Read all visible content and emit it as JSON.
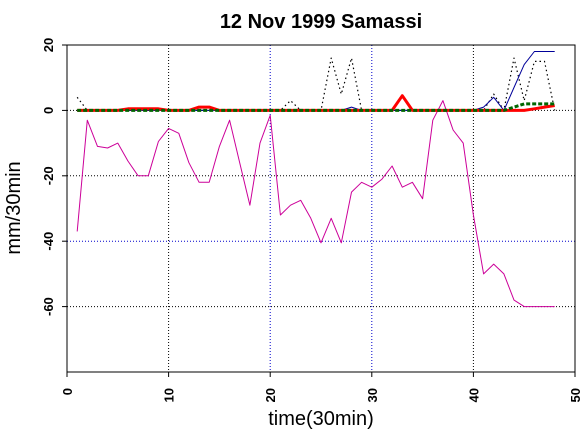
{
  "chart_data": {
    "type": "line",
    "title": "12 Nov 1999  Samassi",
    "xlabel": "time(30min)",
    "ylabel": "mm/30min",
    "xlim": [
      0,
      50
    ],
    "ylim": [
      -80,
      20
    ],
    "x_ticks": [
      0,
      10,
      20,
      30,
      40,
      50
    ],
    "x_tick_labels": [
      "0",
      "10",
      "20",
      "30",
      "40",
      "50"
    ],
    "y_ticks": [
      20,
      0,
      -20,
      -40,
      -60
    ],
    "y_tick_labels": [
      "20",
      "0",
      "-20",
      "-40",
      "-60"
    ],
    "grid": true,
    "grid_styles": {
      "x": [
        "black",
        "blue",
        "blue",
        "black"
      ],
      "y": [
        "black",
        "black",
        "blue",
        "black"
      ]
    },
    "series": [
      {
        "style": "thin-solid",
        "color": "#cc0099",
        "x": [
          1,
          2,
          3,
          4,
          5,
          6,
          7,
          8,
          9,
          10,
          11,
          12,
          13,
          14,
          15,
          16,
          17,
          18,
          19,
          20,
          21,
          22,
          23,
          24,
          25,
          26,
          27,
          28,
          29,
          30,
          31,
          32,
          33,
          34,
          35,
          36,
          37,
          38,
          39,
          40,
          41,
          42,
          43,
          44,
          45,
          46,
          47,
          48
        ],
        "values": [
          -37,
          -3,
          -11,
          -11.5,
          -10,
          -15.5,
          -20,
          -20,
          -9.5,
          -5.5,
          -7,
          -16,
          -22,
          -22,
          -11,
          -3,
          -16,
          -29,
          -10,
          -1.5,
          -32,
          -29,
          -27.5,
          -33,
          -40.5,
          -33,
          -40.5,
          -25,
          -22,
          -23.5,
          -21,
          -17,
          -23.5,
          -22,
          -27,
          -3,
          3,
          -6,
          -10,
          -32,
          -50,
          -47,
          -50,
          -58,
          -60,
          -60,
          -60,
          -60
        ]
      },
      {
        "style": "dotted",
        "color": "#000000",
        "x": [
          1,
          2,
          3,
          4,
          5,
          6,
          7,
          8,
          9,
          10,
          11,
          12,
          13,
          14,
          15,
          16,
          17,
          18,
          19,
          20,
          21,
          22,
          23,
          24,
          25,
          26,
          27,
          28,
          29,
          30,
          31,
          32,
          33,
          34,
          35,
          36,
          37,
          38,
          39,
          40,
          41,
          42,
          43,
          44,
          45,
          46,
          47,
          48
        ],
        "values": [
          4,
          0,
          0,
          0,
          0,
          0,
          0,
          0,
          0,
          0,
          0,
          0,
          0,
          0,
          0,
          0,
          0,
          0,
          0,
          0,
          0,
          3,
          0,
          0,
          0,
          16,
          5,
          16,
          0,
          0,
          0,
          0,
          0,
          0,
          0,
          0,
          0,
          0,
          0,
          0,
          0,
          5,
          0,
          16,
          3,
          15,
          15,
          0
        ]
      },
      {
        "style": "thin-solid",
        "color": "#000099",
        "x": [
          1,
          2,
          3,
          4,
          5,
          6,
          7,
          8,
          9,
          10,
          11,
          12,
          13,
          14,
          15,
          16,
          17,
          18,
          19,
          20,
          21,
          22,
          23,
          24,
          25,
          26,
          27,
          28,
          29,
          30,
          31,
          32,
          33,
          34,
          35,
          36,
          37,
          38,
          39,
          40,
          41,
          42,
          43,
          44,
          45,
          46,
          47,
          48
        ],
        "values": [
          0,
          0,
          0,
          0,
          0,
          0,
          0,
          0,
          0,
          0,
          0,
          0,
          0,
          0,
          0,
          0,
          0,
          0,
          0,
          0,
          0,
          0,
          0,
          0,
          0,
          0,
          0,
          1,
          0,
          0,
          0,
          0,
          0,
          0,
          0,
          0,
          0,
          0,
          0,
          0,
          1,
          4,
          0,
          7,
          14,
          18,
          18,
          18
        ]
      },
      {
        "style": "thick-solid",
        "color": "#ff0000",
        "x": [
          1,
          2,
          3,
          4,
          5,
          6,
          7,
          8,
          9,
          10,
          11,
          12,
          13,
          14,
          15,
          16,
          17,
          18,
          19,
          20,
          21,
          22,
          23,
          24,
          25,
          26,
          27,
          28,
          29,
          30,
          31,
          32,
          33,
          34,
          35,
          36,
          37,
          38,
          39,
          40,
          41,
          42,
          43,
          44,
          45,
          46,
          47,
          48
        ],
        "values": [
          0,
          0,
          0,
          0,
          0,
          0.5,
          0.5,
          0.5,
          0.5,
          0,
          0,
          0,
          1,
          1,
          0,
          0,
          0,
          0,
          0,
          0,
          0,
          0,
          0,
          0,
          0,
          0,
          0,
          0,
          0,
          0,
          0,
          0,
          4.5,
          0,
          0,
          0,
          0,
          0,
          0,
          0,
          0,
          0,
          0,
          0,
          0,
          0.5,
          1,
          1.5
        ]
      },
      {
        "style": "thick-dashed",
        "color": "#006600",
        "x": [
          1,
          2,
          3,
          4,
          5,
          6,
          7,
          8,
          9,
          10,
          11,
          12,
          13,
          14,
          15,
          16,
          17,
          18,
          19,
          20,
          21,
          22,
          23,
          24,
          25,
          26,
          27,
          28,
          29,
          30,
          31,
          32,
          33,
          34,
          35,
          36,
          37,
          38,
          39,
          40,
          41,
          42,
          43,
          44,
          45,
          46,
          47,
          48
        ],
        "values": [
          0,
          0,
          0,
          0,
          0,
          0,
          0,
          0,
          0,
          0,
          0,
          0,
          0,
          0,
          0,
          0,
          0,
          0,
          0,
          0,
          0,
          0,
          0,
          0,
          0,
          0,
          0,
          0,
          0,
          0,
          0,
          0,
          0,
          0,
          0,
          0,
          0,
          0,
          0,
          0,
          0,
          0,
          0,
          1,
          2,
          2,
          2,
          2
        ]
      }
    ]
  }
}
